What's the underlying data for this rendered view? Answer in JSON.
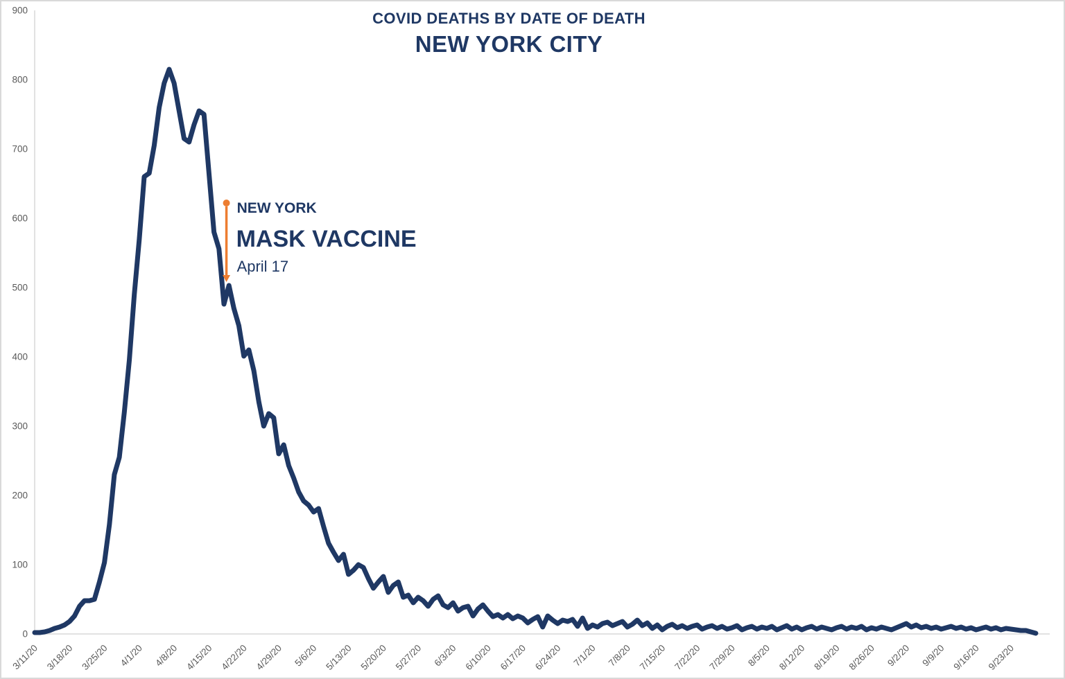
{
  "title": {
    "line1": "COVID DEATHS BY DATE OF DEATH",
    "line2": "NEW YORK CITY"
  },
  "colors": {
    "line": "#1f3864",
    "title": "#1f3864",
    "accent_orange": "#ed7d31",
    "tick_label": "#595959",
    "axis_line": "#d9d9d9",
    "background": "#ffffff",
    "border": "#d9d9d9"
  },
  "chart_data": {
    "type": "line",
    "title": "COVID DEATHS BY DATE OF DEATH — NEW YORK CITY",
    "xlabel": "",
    "ylabel": "",
    "ylim": [
      0,
      900
    ],
    "y_ticks": [
      0,
      100,
      200,
      300,
      400,
      500,
      600,
      700,
      800,
      900
    ],
    "grid": "baseline-only",
    "legend_position": "none",
    "start_date": "3/11/20",
    "frequency": "daily",
    "x_tick_labels": [
      "3/11/20",
      "3/18/20",
      "3/25/20",
      "4/1/20",
      "4/8/20",
      "4/15/20",
      "4/22/20",
      "4/29/20",
      "5/6/20",
      "5/13/20",
      "5/20/20",
      "5/27/20",
      "6/3/20",
      "6/10/20",
      "6/17/20",
      "6/24/20",
      "7/1/20",
      "7/8/20",
      "7/15/20",
      "7/22/20",
      "7/29/20",
      "8/5/20",
      "8/12/20",
      "8/19/20",
      "8/26/20",
      "9/2/20",
      "9/9/20",
      "9/16/20",
      "9/23/20"
    ],
    "x_tick_interval_days": 7,
    "values": [
      2,
      2,
      3,
      5,
      8,
      10,
      13,
      18,
      26,
      40,
      48,
      48,
      50,
      75,
      103,
      158,
      230,
      255,
      320,
      395,
      490,
      570,
      660,
      665,
      705,
      760,
      795,
      815,
      795,
      755,
      715,
      710,
      735,
      755,
      750,
      665,
      580,
      556,
      476,
      503,
      470,
      445,
      401,
      410,
      380,
      335,
      300,
      318,
      312,
      260,
      273,
      243,
      225,
      205,
      192,
      186,
      176,
      181,
      155,
      131,
      118,
      106,
      115,
      86,
      92,
      100,
      96,
      80,
      66,
      75,
      83,
      60,
      70,
      75,
      53,
      56,
      45,
      53,
      48,
      40,
      50,
      55,
      42,
      38,
      45,
      33,
      38,
      40,
      26,
      36,
      42,
      33,
      25,
      28,
      23,
      28,
      22,
      26,
      23,
      16,
      21,
      25,
      10,
      26,
      20,
      15,
      20,
      18,
      21,
      11,
      23,
      8,
      13,
      10,
      15,
      17,
      12,
      15,
      18,
      10,
      14,
      20,
      12,
      16,
      8,
      13,
      6,
      11,
      14,
      9,
      12,
      8,
      11,
      13,
      7,
      10,
      12,
      8,
      11,
      7,
      9,
      12,
      6,
      9,
      11,
      7,
      10,
      8,
      11,
      6,
      9,
      12,
      7,
      10,
      6,
      9,
      11,
      7,
      10,
      8,
      6,
      9,
      11,
      7,
      10,
      8,
      11,
      6,
      9,
      7,
      10,
      8,
      6,
      9,
      12,
      15,
      10,
      13,
      9,
      11,
      8,
      10,
      7,
      9,
      11,
      8,
      10,
      7,
      9,
      6,
      8,
      10,
      7,
      9,
      6,
      8,
      7,
      6,
      5,
      5,
      3,
      1
    ],
    "peak": {
      "date": "4/7/20",
      "value": 815
    },
    "annotation": {
      "line1": "NEW YORK",
      "line2": "MASK VACCINE",
      "line3": "April 17",
      "day_index": 38.5,
      "arrow_from_value": 622,
      "arrow_to_value": 508
    }
  }
}
